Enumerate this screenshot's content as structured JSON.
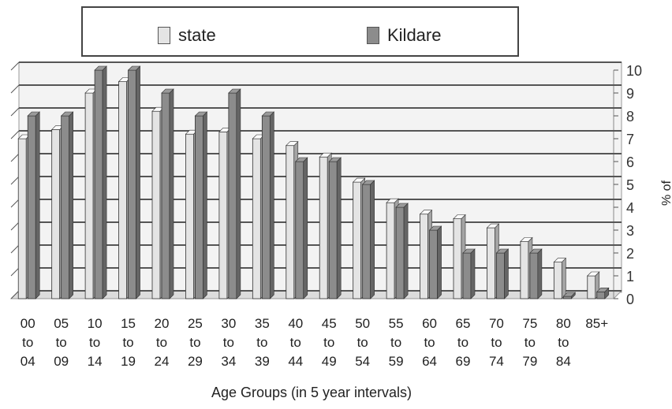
{
  "chart_data": {
    "type": "bar",
    "categories": [
      [
        "00",
        "to",
        "04"
      ],
      [
        "05",
        "to",
        "09"
      ],
      [
        "10",
        "to",
        "14"
      ],
      [
        "15",
        "to",
        "19"
      ],
      [
        "20",
        "to",
        "24"
      ],
      [
        "25",
        "to",
        "29"
      ],
      [
        "30",
        "to",
        "34"
      ],
      [
        "35",
        "to",
        "39"
      ],
      [
        "40",
        "to",
        "44"
      ],
      [
        "45",
        "to",
        "49"
      ],
      [
        "50",
        "to",
        "54"
      ],
      [
        "55",
        "to",
        "59"
      ],
      [
        "60",
        "to",
        "64"
      ],
      [
        "65",
        "to",
        "69"
      ],
      [
        "70",
        "to",
        "74"
      ],
      [
        "75",
        "to",
        "79"
      ],
      [
        "80",
        "to",
        "84"
      ],
      [
        "85+"
      ]
    ],
    "series": [
      {
        "name": "state",
        "color": "#e4e4e4",
        "values": [
          7.0,
          7.4,
          9.0,
          9.5,
          8.2,
          7.2,
          7.3,
          7.0,
          6.7,
          6.2,
          5.1,
          4.2,
          3.7,
          3.5,
          3.1,
          2.5,
          1.6,
          1.0
        ]
      },
      {
        "name": "Kildare",
        "color": "#8c8c8c",
        "values": [
          8.0,
          8.0,
          10.0,
          10.0,
          9.0,
          8.0,
          9.0,
          8.0,
          6.0,
          6.0,
          5.0,
          4.0,
          3.0,
          2.0,
          2.0,
          2.0,
          0.1,
          0.3
        ]
      }
    ],
    "y_ticks": [
      "0",
      "1",
      "2",
      "3",
      "4",
      "5",
      "6",
      "7",
      "8",
      "9",
      "10"
    ],
    "ylim": [
      0,
      10
    ],
    "xlabel": "Age Groups (in 5 year intervals)",
    "ylabel": "% of Population",
    "legend_position": "top",
    "grid": true
  }
}
